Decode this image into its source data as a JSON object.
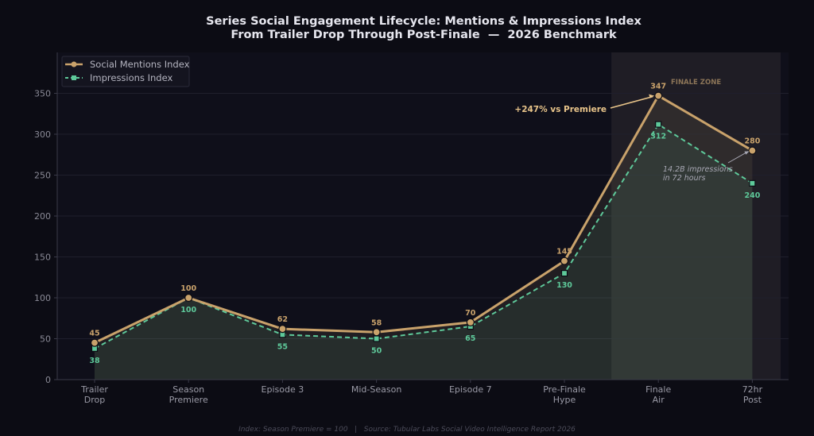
{
  "chart_data": {
    "type": "line",
    "title": "Series Social Engagement Lifecycle: Mentions & Impressions Index",
    "subtitle": "From Trailer Drop Through Post-Finale  —  2026 Benchmark",
    "categories": [
      [
        "Trailer",
        "Drop"
      ],
      [
        "Season",
        "Premiere"
      ],
      [
        "Episode 3"
      ],
      [
        "Mid-Season"
      ],
      [
        "Episode 7"
      ],
      [
        "Pre-Finale",
        "Hype"
      ],
      [
        "Finale",
        "Air"
      ],
      [
        "72hr",
        "Post"
      ]
    ],
    "series": [
      {
        "name": "Social Mentions Index",
        "values": [
          45,
          100,
          62,
          58,
          70,
          145,
          347,
          280
        ],
        "color": "#c9a26b",
        "marker": "circle",
        "line": "solid"
      },
      {
        "name": "Impressions Index",
        "values": [
          38,
          100,
          55,
          50,
          65,
          130,
          312,
          240
        ],
        "color": "#5ec99a",
        "marker": "square",
        "line": "dashed"
      }
    ],
    "ylim": [
      0,
      400
    ],
    "yticks": [
      0,
      50,
      100,
      150,
      200,
      250,
      300,
      350
    ],
    "grid": true,
    "legend": "top-left",
    "highlight_zone": {
      "label": "FINALE ZONE",
      "from_category": 6,
      "to_category": 7
    },
    "annotations": [
      {
        "text": "+247% vs Premiere",
        "target_series": 0,
        "target_category": 6
      },
      {
        "text": "14.2B impressions\nin 72 hours",
        "target_series": 0,
        "target_category": 7
      }
    ],
    "footnote": "Index: Season Premiere = 100   |   Source: Tubular Labs Social Video Intelligence Report 2026"
  }
}
